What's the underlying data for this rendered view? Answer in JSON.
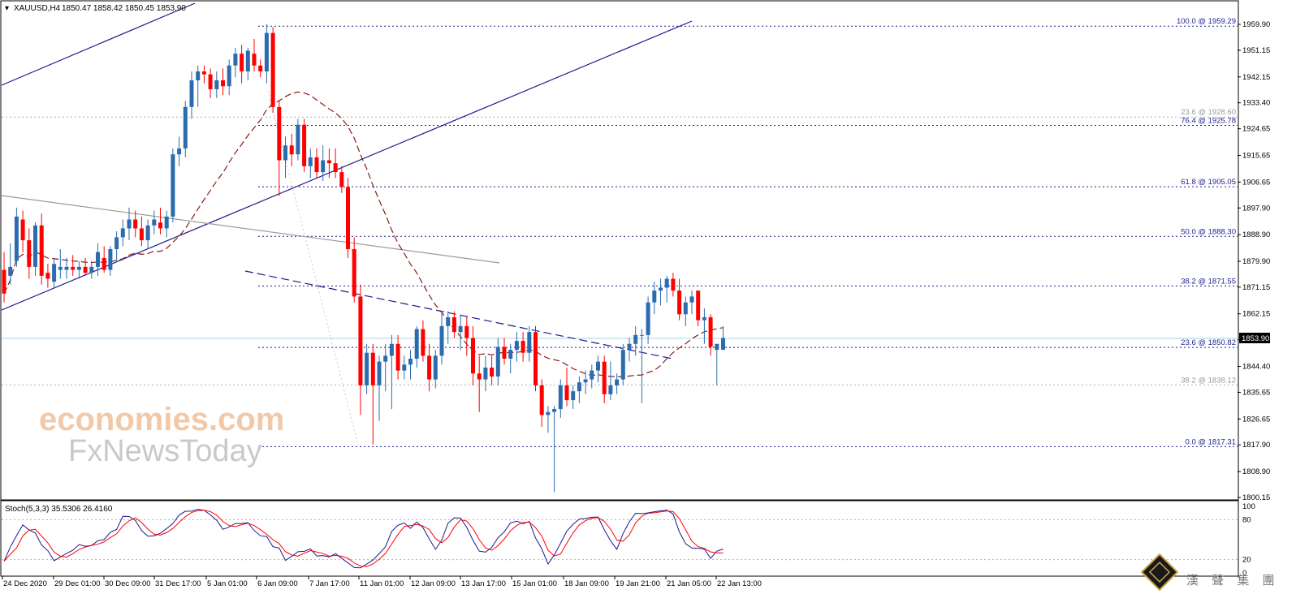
{
  "header": {
    "symbol": "XAUUSD,H4",
    "ohlc": "1850.47 1858.42 1850.45 1853.90",
    "triangle_icon": "triangle-down-icon"
  },
  "indicator": {
    "label": "Stoch(5,3,3) 35.5306 26.4160",
    "levels": [
      "100",
      "80",
      "20",
      "0"
    ]
  },
  "price_tag": "1853.90",
  "watermark": {
    "line1": "economies.com",
    "line2": "FxNewsToday",
    "corner_cn": "漢 聲 集 團"
  },
  "colors": {
    "bull": "#2b6cb0",
    "bear": "#ff0000",
    "ma": "#8b1a1a",
    "trend": "#1a1a8c",
    "fib": "#1a1a8c",
    "grid_gray": "#b0b0b0",
    "bid": "#a8d8e8"
  },
  "chart_data": {
    "type": "candlestick",
    "timeframe": "H4",
    "ylim": [
      1798,
      1966
    ],
    "y_ticks": [
      1959.9,
      1951.15,
      1942.15,
      1933.4,
      1924.65,
      1915.65,
      1906.65,
      1897.9,
      1888.9,
      1879.9,
      1871.15,
      1862.15,
      1853.4,
      1844.4,
      1835.65,
      1826.65,
      1817.9,
      1808.9,
      1800.15
    ],
    "x_labels": [
      "24 Dec 2020",
      "29 Dec 01:00",
      "30 Dec 09:00",
      "31 Dec 17:00",
      "5 Jan 01:00",
      "6 Jan 09:00",
      "7 Jan 17:00",
      "11 Jan 01:00",
      "12 Jan 09:00",
      "13 Jan 17:00",
      "15 Jan 01:00",
      "18 Jan 09:00",
      "19 Jan 21:00",
      "21 Jan 05:00",
      "22 Jan 13:00"
    ],
    "fib_levels": [
      {
        "label": "100.0 @ 1959.29",
        "value": 1959.29,
        "style": "blue"
      },
      {
        "label": "23.6 @ 1928.60",
        "value": 1928.6,
        "style": "gray"
      },
      {
        "label": "76.4 @ 1925.78",
        "value": 1925.78,
        "style": "blue"
      },
      {
        "label": "61.8 @ 1905.05",
        "value": 1905.05,
        "style": "blue"
      },
      {
        "label": "50.0 @ 1888.30",
        "value": 1888.3,
        "style": "blue"
      },
      {
        "label": "38.2 @ 1871.55",
        "value": 1871.55,
        "style": "blue"
      },
      {
        "label": "23.6 @ 1850.82",
        "value": 1850.82,
        "style": "blue"
      },
      {
        "label": "38.2 @ 1838.12",
        "value": 1838.12,
        "style": "gray"
      },
      {
        "label": "0.0 @ 1817.31",
        "value": 1817.31,
        "style": "blue"
      }
    ],
    "current_price": 1853.9,
    "candles": [
      {
        "o": 1877,
        "h": 1883,
        "l": 1866,
        "c": 1869
      },
      {
        "o": 1875,
        "h": 1886,
        "l": 1872,
        "c": 1878
      },
      {
        "o": 1880,
        "h": 1898,
        "l": 1878,
        "c": 1895
      },
      {
        "o": 1894,
        "h": 1897,
        "l": 1883,
        "c": 1887
      },
      {
        "o": 1887,
        "h": 1891,
        "l": 1874,
        "c": 1878
      },
      {
        "o": 1878,
        "h": 1893,
        "l": 1875,
        "c": 1892
      },
      {
        "o": 1892,
        "h": 1896,
        "l": 1872,
        "c": 1875
      },
      {
        "o": 1876,
        "h": 1879,
        "l": 1871,
        "c": 1874
      },
      {
        "o": 1873,
        "h": 1881,
        "l": 1871,
        "c": 1879
      },
      {
        "o": 1877,
        "h": 1884,
        "l": 1874,
        "c": 1878
      },
      {
        "o": 1877,
        "h": 1881,
        "l": 1874,
        "c": 1878
      },
      {
        "o": 1878,
        "h": 1882,
        "l": 1875,
        "c": 1877
      },
      {
        "o": 1877,
        "h": 1880,
        "l": 1874,
        "c": 1878
      },
      {
        "o": 1878,
        "h": 1881,
        "l": 1875,
        "c": 1876
      },
      {
        "o": 1876,
        "h": 1880,
        "l": 1874,
        "c": 1878
      },
      {
        "o": 1878,
        "h": 1886,
        "l": 1875,
        "c": 1883
      },
      {
        "o": 1881,
        "h": 1885,
        "l": 1876,
        "c": 1877
      },
      {
        "o": 1877,
        "h": 1885,
        "l": 1875,
        "c": 1884
      },
      {
        "o": 1884,
        "h": 1890,
        "l": 1880,
        "c": 1888
      },
      {
        "o": 1888,
        "h": 1894,
        "l": 1885,
        "c": 1891
      },
      {
        "o": 1891,
        "h": 1898,
        "l": 1887,
        "c": 1894
      },
      {
        "o": 1894,
        "h": 1897,
        "l": 1888,
        "c": 1891
      },
      {
        "o": 1891,
        "h": 1895,
        "l": 1885,
        "c": 1887
      },
      {
        "o": 1887,
        "h": 1894,
        "l": 1884,
        "c": 1892
      },
      {
        "o": 1892,
        "h": 1897,
        "l": 1889,
        "c": 1894
      },
      {
        "o": 1893,
        "h": 1898,
        "l": 1889,
        "c": 1891
      },
      {
        "o": 1891,
        "h": 1897,
        "l": 1888,
        "c": 1895
      },
      {
        "o": 1895,
        "h": 1918,
        "l": 1893,
        "c": 1916
      },
      {
        "o": 1916,
        "h": 1922,
        "l": 1912,
        "c": 1918
      },
      {
        "o": 1918,
        "h": 1934,
        "l": 1915,
        "c": 1932
      },
      {
        "o": 1932,
        "h": 1944,
        "l": 1928,
        "c": 1941
      },
      {
        "o": 1941,
        "h": 1946,
        "l": 1932,
        "c": 1944
      },
      {
        "o": 1944,
        "h": 1946,
        "l": 1940,
        "c": 1943
      },
      {
        "o": 1943,
        "h": 1945,
        "l": 1935,
        "c": 1938
      },
      {
        "o": 1938,
        "h": 1944,
        "l": 1935,
        "c": 1941
      },
      {
        "o": 1941,
        "h": 1945,
        "l": 1936,
        "c": 1939
      },
      {
        "o": 1939,
        "h": 1948,
        "l": 1936,
        "c": 1946
      },
      {
        "o": 1946,
        "h": 1952,
        "l": 1942,
        "c": 1950
      },
      {
        "o": 1950,
        "h": 1953,
        "l": 1940,
        "c": 1944
      },
      {
        "o": 1944,
        "h": 1952,
        "l": 1941,
        "c": 1951
      },
      {
        "o": 1950,
        "h": 1955,
        "l": 1944,
        "c": 1946
      },
      {
        "o": 1946,
        "h": 1948,
        "l": 1942,
        "c": 1944
      },
      {
        "o": 1944,
        "h": 1960,
        "l": 1940,
        "c": 1957
      },
      {
        "o": 1957,
        "h": 1959,
        "l": 1930,
        "c": 1932
      },
      {
        "o": 1932,
        "h": 1934,
        "l": 1902,
        "c": 1914
      },
      {
        "o": 1914,
        "h": 1922,
        "l": 1908,
        "c": 1919
      },
      {
        "o": 1919,
        "h": 1923,
        "l": 1912,
        "c": 1916
      },
      {
        "o": 1916,
        "h": 1928,
        "l": 1914,
        "c": 1926
      },
      {
        "o": 1926,
        "h": 1928,
        "l": 1910,
        "c": 1912
      },
      {
        "o": 1912,
        "h": 1918,
        "l": 1908,
        "c": 1915
      },
      {
        "o": 1915,
        "h": 1918,
        "l": 1908,
        "c": 1910
      },
      {
        "o": 1910,
        "h": 1919,
        "l": 1907,
        "c": 1914
      },
      {
        "o": 1914,
        "h": 1918,
        "l": 1908,
        "c": 1913
      },
      {
        "o": 1913,
        "h": 1918,
        "l": 1908,
        "c": 1910
      },
      {
        "o": 1910,
        "h": 1912,
        "l": 1903,
        "c": 1905
      },
      {
        "o": 1905,
        "h": 1908,
        "l": 1881,
        "c": 1884
      },
      {
        "o": 1884,
        "h": 1888,
        "l": 1866,
        "c": 1868
      },
      {
        "o": 1868,
        "h": 1872,
        "l": 1828,
        "c": 1838
      },
      {
        "o": 1838,
        "h": 1852,
        "l": 1835,
        "c": 1849
      },
      {
        "o": 1849,
        "h": 1852,
        "l": 1818,
        "c": 1838
      },
      {
        "o": 1838,
        "h": 1848,
        "l": 1826,
        "c": 1846
      },
      {
        "o": 1846,
        "h": 1852,
        "l": 1836,
        "c": 1848
      },
      {
        "o": 1848,
        "h": 1855,
        "l": 1830,
        "c": 1852
      },
      {
        "o": 1852,
        "h": 1855,
        "l": 1840,
        "c": 1843
      },
      {
        "o": 1843,
        "h": 1848,
        "l": 1840,
        "c": 1845
      },
      {
        "o": 1845,
        "h": 1850,
        "l": 1840,
        "c": 1847
      },
      {
        "o": 1847,
        "h": 1858,
        "l": 1844,
        "c": 1857
      },
      {
        "o": 1857,
        "h": 1860,
        "l": 1846,
        "c": 1848
      },
      {
        "o": 1848,
        "h": 1852,
        "l": 1836,
        "c": 1840
      },
      {
        "o": 1840,
        "h": 1850,
        "l": 1837,
        "c": 1848
      },
      {
        "o": 1848,
        "h": 1863,
        "l": 1845,
        "c": 1858
      },
      {
        "o": 1858,
        "h": 1863,
        "l": 1852,
        "c": 1861
      },
      {
        "o": 1861,
        "h": 1863,
        "l": 1854,
        "c": 1856
      },
      {
        "o": 1856,
        "h": 1862,
        "l": 1850,
        "c": 1858
      },
      {
        "o": 1858,
        "h": 1861,
        "l": 1848,
        "c": 1854
      },
      {
        "o": 1854,
        "h": 1858,
        "l": 1838,
        "c": 1842
      },
      {
        "o": 1842,
        "h": 1848,
        "l": 1829,
        "c": 1840
      },
      {
        "o": 1840,
        "h": 1848,
        "l": 1836,
        "c": 1844
      },
      {
        "o": 1844,
        "h": 1848,
        "l": 1838,
        "c": 1841
      },
      {
        "o": 1841,
        "h": 1854,
        "l": 1838,
        "c": 1851
      },
      {
        "o": 1851,
        "h": 1854,
        "l": 1845,
        "c": 1847
      },
      {
        "o": 1847,
        "h": 1852,
        "l": 1842,
        "c": 1850
      },
      {
        "o": 1850,
        "h": 1856,
        "l": 1846,
        "c": 1853
      },
      {
        "o": 1853,
        "h": 1856,
        "l": 1846,
        "c": 1849
      },
      {
        "o": 1849,
        "h": 1858,
        "l": 1846,
        "c": 1856
      },
      {
        "o": 1856,
        "h": 1858,
        "l": 1836,
        "c": 1838
      },
      {
        "o": 1838,
        "h": 1840,
        "l": 1824,
        "c": 1828
      },
      {
        "o": 1828,
        "h": 1831,
        "l": 1822,
        "c": 1829
      },
      {
        "o": 1829,
        "h": 1831,
        "l": 1802,
        "c": 1830
      },
      {
        "o": 1830,
        "h": 1840,
        "l": 1827,
        "c": 1838
      },
      {
        "o": 1838,
        "h": 1844,
        "l": 1831,
        "c": 1833
      },
      {
        "o": 1833,
        "h": 1838,
        "l": 1830,
        "c": 1836
      },
      {
        "o": 1836,
        "h": 1841,
        "l": 1832,
        "c": 1839
      },
      {
        "o": 1839,
        "h": 1843,
        "l": 1835,
        "c": 1840
      },
      {
        "o": 1840,
        "h": 1845,
        "l": 1837,
        "c": 1843
      },
      {
        "o": 1843,
        "h": 1848,
        "l": 1839,
        "c": 1846
      },
      {
        "o": 1846,
        "h": 1848,
        "l": 1832,
        "c": 1835
      },
      {
        "o": 1835,
        "h": 1846,
        "l": 1833,
        "c": 1838
      },
      {
        "o": 1838,
        "h": 1842,
        "l": 1835,
        "c": 1840
      },
      {
        "o": 1840,
        "h": 1852,
        "l": 1838,
        "c": 1850
      },
      {
        "o": 1850,
        "h": 1854,
        "l": 1846,
        "c": 1852
      },
      {
        "o": 1852,
        "h": 1858,
        "l": 1848,
        "c": 1855
      },
      {
        "o": 1855,
        "h": 1857,
        "l": 1832,
        "c": 1855
      },
      {
        "o": 1855,
        "h": 1868,
        "l": 1852,
        "c": 1866
      },
      {
        "o": 1866,
        "h": 1873,
        "l": 1862,
        "c": 1870
      },
      {
        "o": 1870,
        "h": 1874,
        "l": 1865,
        "c": 1871
      },
      {
        "o": 1871,
        "h": 1875,
        "l": 1866,
        "c": 1874
      },
      {
        "o": 1874,
        "h": 1876,
        "l": 1868,
        "c": 1870
      },
      {
        "o": 1870,
        "h": 1874,
        "l": 1860,
        "c": 1862
      },
      {
        "o": 1862,
        "h": 1868,
        "l": 1858,
        "c": 1866
      },
      {
        "o": 1866,
        "h": 1870,
        "l": 1862,
        "c": 1868
      },
      {
        "o": 1870,
        "h": 1870,
        "l": 1858,
        "c": 1860
      },
      {
        "o": 1860,
        "h": 1864,
        "l": 1852,
        "c": 1861
      },
      {
        "o": 1861,
        "h": 1862,
        "l": 1848,
        "c": 1851
      },
      {
        "o": 1850,
        "h": 1852,
        "l": 1838,
        "c": 1852
      },
      {
        "o": 1850,
        "h": 1858,
        "l": 1850,
        "c": 1854
      }
    ],
    "stochastic": {
      "name": "Stoch(5,3,3)",
      "k": 35.5306,
      "d": 26.416,
      "levels": [
        80,
        20
      ]
    }
  }
}
